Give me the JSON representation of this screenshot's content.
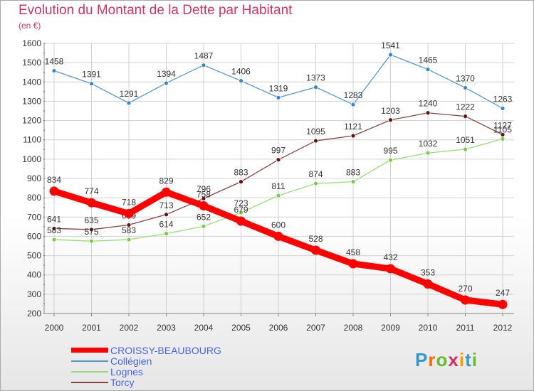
{
  "title": "Evolution du Montant de la Dette par Habitant",
  "unit_label": "(en €)",
  "logo_text": "Proxiti",
  "logo_colors": [
    "#3399cc",
    "#ff6600",
    "#66bb33",
    "#cc3366",
    "#ff9900",
    "#3399cc",
    "#66bb33"
  ],
  "chart_data": {
    "type": "line",
    "x": [
      "2000",
      "2001",
      "2002",
      "2003",
      "2004",
      "2005",
      "2006",
      "2007",
      "2008",
      "2009",
      "2010",
      "2011",
      "2012"
    ],
    "ylim": [
      200,
      1600
    ],
    "yticks": [
      200,
      300,
      400,
      500,
      600,
      700,
      800,
      900,
      1000,
      1100,
      1200,
      1300,
      1400,
      1500,
      1600
    ],
    "grid": true,
    "legend_position": "bottom-left",
    "series": [
      {
        "name": "Collégien",
        "color": "#5599cc",
        "marker": "#3388cc",
        "thick": false,
        "values": [
          1458,
          1391,
          1291,
          1394,
          1487,
          1406,
          1319,
          1373,
          1283,
          1541,
          1465,
          1370,
          1263
        ]
      },
      {
        "name": "Torcy",
        "color": "#884444",
        "marker": "#661111",
        "thick": false,
        "values": [
          641,
          635,
          659,
          713,
          796,
          883,
          997,
          1095,
          1121,
          1203,
          1240,
          1222,
          1127
        ]
      },
      {
        "name": "Lognes",
        "color": "#99dd77",
        "marker": "#77cc44",
        "thick": false,
        "values": [
          583,
          575,
          583,
          614,
          652,
          723,
          811,
          874,
          883,
          995,
          1032,
          1051,
          1105
        ]
      },
      {
        "name": "CROISSY-BEAUBOURG",
        "color": "#ff0000",
        "marker": "#ff0000",
        "thick": true,
        "values": [
          834,
          774,
          718,
          829,
          758,
          679,
          600,
          528,
          458,
          432,
          353,
          270,
          247
        ]
      }
    ]
  }
}
